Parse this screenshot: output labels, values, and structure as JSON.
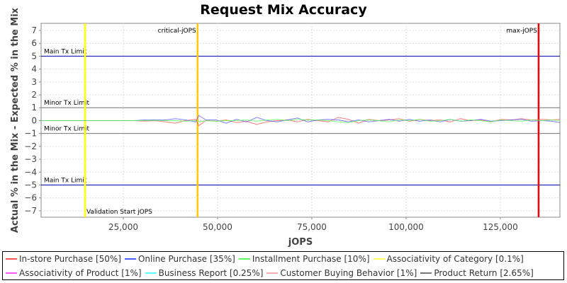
{
  "chart_data": {
    "type": "line",
    "title": "Request Mix Accuracy",
    "xlabel": "jOPS",
    "ylabel": "Actual % in the Mix - Expected % in the Mix",
    "xlim": [
      3200,
      140800
    ],
    "ylim": [
      -7.5,
      7.55
    ],
    "xticks": [
      25000,
      50000,
      75000,
      100000,
      125000
    ],
    "xtick_labels": [
      "25,000",
      "50,000",
      "75,000",
      "100,000",
      "125,000"
    ],
    "yticks": [
      7,
      6,
      5,
      4,
      3,
      2,
      1,
      0,
      -1,
      -2,
      -3,
      -4,
      -5,
      -6,
      -7
    ],
    "grid": true,
    "legend_placement": "bottom",
    "x": [
      3200,
      26000,
      28000,
      30700,
      33400,
      36100,
      38800,
      41500,
      44200,
      45000,
      46900,
      49600,
      52300,
      55000,
      57700,
      60400,
      63100,
      65800,
      68500,
      71200,
      73900,
      76600,
      79300,
      82000,
      84700,
      87400,
      90100,
      92800,
      95500,
      98200,
      100900,
      103600,
      106300,
      109000,
      111700,
      114400,
      117100,
      119800,
      122500,
      125200,
      127900,
      130600,
      133300,
      136000,
      138700,
      140800
    ],
    "series": [
      {
        "name": "In-store Purchase [50%]",
        "color": "#ff5555",
        "values": [
          0,
          0,
          0,
          -0.05,
          0,
          -0.1,
          -0.2,
          0,
          0.1,
          -0.4,
          0,
          -0.05,
          0.05,
          -0.15,
          -0.05,
          -0.3,
          -0.1,
          0,
          0.05,
          -0.1,
          0.1,
          0,
          -0.1,
          0.25,
          0.1,
          -0.2,
          0.1,
          0,
          0.05,
          0.15,
          -0.05,
          0.1,
          0,
          0.05,
          -0.1,
          0.15,
          0,
          0.05,
          -0.1,
          0.1,
          0.05,
          0.15,
          0.05,
          0.1,
          0.05,
          0.1
        ]
      },
      {
        "name": "Online Purchase [35%]",
        "color": "#5555ff",
        "values": [
          0,
          0,
          0,
          0.05,
          0.05,
          0.05,
          0.15,
          0.05,
          -0.1,
          0.4,
          0.05,
          0.05,
          -0.2,
          0.1,
          -0.1,
          0.25,
          0,
          -0.1,
          0.05,
          0.2,
          -0.1,
          0.05,
          0.1,
          0.05,
          -0.1,
          0.05,
          -0.1,
          0,
          0.1,
          -0.05,
          0.1,
          -0.05,
          0.05,
          -0.1,
          0.1,
          -0.05,
          0,
          0.1,
          -0.05,
          0,
          0.05,
          0.1,
          -0.05,
          0,
          -0.05,
          -0.15
        ]
      },
      {
        "name": "Installment Purchase [10%]",
        "color": "#55ff55",
        "values": [
          0,
          0,
          0,
          0,
          0.02,
          0,
          0,
          -0.05,
          0,
          -0.1,
          0,
          -0.05,
          0,
          0,
          0.05,
          -0.05,
          0.05,
          0.1,
          0,
          0.1,
          0.05,
          0.05,
          0,
          -0.1,
          -0.15,
          0,
          0.05,
          0,
          -0.1,
          0.05,
          0,
          0.1,
          -0.05,
          0,
          0.1,
          -0.05,
          0.05,
          0,
          -0.1,
          0.05,
          0,
          -0.05,
          0.05,
          0,
          0.05,
          0
        ]
      },
      {
        "name": "Associativity of Category [0.1%]",
        "color": "#ffff55"
      },
      {
        "name": "Associativity of Product [1%]",
        "color": "#ff55ff"
      },
      {
        "name": "Business Report [0.25%]",
        "color": "#55ffff"
      },
      {
        "name": "Customer Buying Behavior [1%]",
        "color": "#ffaaaa"
      },
      {
        "name": "Product Return [2.65%]",
        "color": "#777777"
      }
    ],
    "hlines": [
      {
        "label": "Main Tx Limit",
        "y": 5,
        "color": "#0000aa"
      },
      {
        "label": "Minor Tx Limit",
        "y": 1,
        "color": "#777777"
      },
      {
        "label": "Minor Tx Limit",
        "y": -1,
        "color": "#777777"
      },
      {
        "label": "Main Tx Limit",
        "y": -5,
        "color": "#0000aa"
      }
    ],
    "vlines": [
      {
        "label": "Validation Start jOPS",
        "x": 14850,
        "color": "#ffff00",
        "label_pos": "bottom-right"
      },
      {
        "label": "critical-jOPS",
        "x": 44700,
        "color": "#ffc800",
        "label_pos": "top-left"
      },
      {
        "label": "max-jOPS",
        "x": 135150,
        "color": "#ff0000",
        "label_pos": "top-left"
      }
    ]
  }
}
